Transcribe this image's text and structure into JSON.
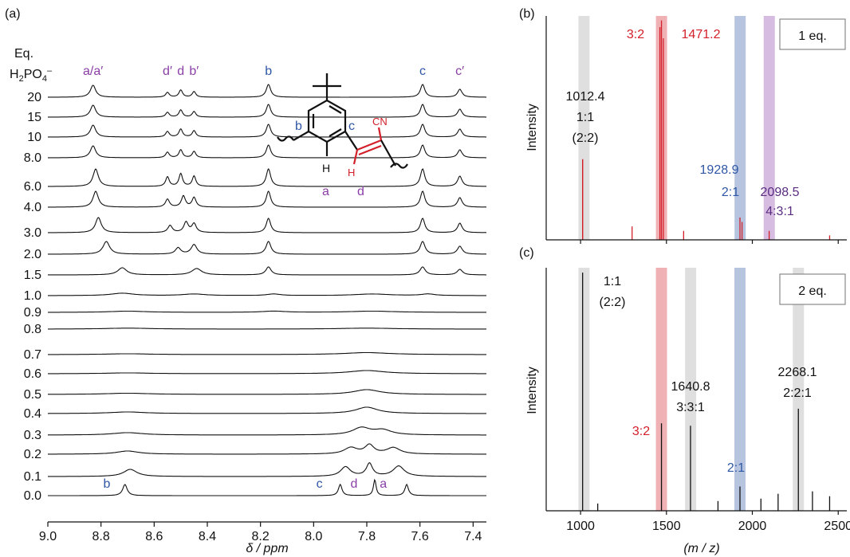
{
  "panels": {
    "a_label": "(a)",
    "b_label": "(b)",
    "c_label": "(c)"
  },
  "chart_data": [
    {
      "type": "line",
      "panel": "(a)",
      "xlabel": "δ / ppm",
      "xlim": [
        9.0,
        7.35
      ],
      "x_ticks": [
        "9.0",
        "8.8",
        "8.6",
        "8.4",
        "8.2",
        "8.0",
        "7.8",
        "7.6",
        "7.4"
      ],
      "x_tick_values": [
        9.0,
        8.8,
        8.6,
        8.4,
        8.2,
        8.0,
        7.8,
        7.6,
        7.4
      ],
      "row_header": [
        "Eq.",
        "H",
        "2",
        "PO",
        "4",
        "–"
      ],
      "equivalents": [
        "20",
        "15",
        "10",
        "8.0",
        "6.0",
        "4.0",
        "3.0",
        "2.0",
        "1.5",
        "1.0",
        "0.9",
        "0.8",
        "0.7",
        "0.6",
        "0.5",
        "0.4",
        "0.3",
        "0.2",
        "0.1",
        "0.0"
      ],
      "top_peak_labels": [
        {
          "text": "a/a′",
          "ppm": 8.83,
          "color": "purple"
        },
        {
          "text": "d′",
          "ppm": 8.55,
          "color": "purple"
        },
        {
          "text": "d",
          "ppm": 8.5,
          "color": "purple"
        },
        {
          "text": "b′",
          "ppm": 8.45,
          "color": "purple"
        },
        {
          "text": "b",
          "ppm": 8.17,
          "color": "blue"
        },
        {
          "text": "c",
          "ppm": 7.59,
          "color": "blue"
        },
        {
          "text": "c′",
          "ppm": 7.45,
          "color": "purple"
        }
      ],
      "bottom_peak_labels": [
        {
          "text": "b",
          "ppm": 8.73,
          "color": "blue"
        },
        {
          "text": "c",
          "ppm": 7.93,
          "color": "blue"
        },
        {
          "text": "d",
          "ppm": 7.8,
          "color": "purple"
        },
        {
          "text": "a",
          "ppm": 7.69,
          "color": "purple"
        }
      ],
      "structure_labels": {
        "b": "b",
        "c": "c",
        "cn": "CN",
        "h1": "H",
        "h2": "H",
        "a": "a",
        "d": "d"
      },
      "spectra": [
        {
          "eq": "20",
          "baseline_gap": [
            8.12,
            7.65
          ],
          "peaks": [
            [
              8.83,
              15,
              0.012
            ],
            [
              8.55,
              6,
              0.008
            ],
            [
              8.5,
              9,
              0.008
            ],
            [
              8.45,
              7,
              0.008
            ],
            [
              8.17,
              16,
              0.01
            ],
            [
              7.59,
              16,
              0.01
            ],
            [
              7.45,
              10,
              0.01
            ]
          ]
        },
        {
          "eq": "15",
          "peaks": [
            [
              8.83,
              15,
              0.012
            ],
            [
              8.55,
              6,
              0.008
            ],
            [
              8.5,
              9,
              0.008
            ],
            [
              8.45,
              7,
              0.008
            ],
            [
              8.17,
              16,
              0.01
            ],
            [
              7.59,
              16,
              0.01
            ],
            [
              7.45,
              10,
              0.01
            ]
          ]
        },
        {
          "eq": "10",
          "peaks": [
            [
              8.83,
              15,
              0.012
            ],
            [
              8.55,
              7,
              0.008
            ],
            [
              8.5,
              10,
              0.008
            ],
            [
              8.45,
              8,
              0.008
            ],
            [
              8.17,
              16,
              0.01
            ],
            [
              7.59,
              16,
              0.01
            ],
            [
              7.45,
              10,
              0.01
            ]
          ]
        },
        {
          "eq": "8.0",
          "peaks": [
            [
              8.83,
              15,
              0.012
            ],
            [
              8.55,
              7,
              0.008
            ],
            [
              8.5,
              10,
              0.008
            ],
            [
              8.45,
              8,
              0.008
            ],
            [
              8.17,
              16,
              0.01
            ],
            [
              7.59,
              16,
              0.01
            ],
            [
              7.45,
              10,
              0.01
            ]
          ]
        },
        {
          "eq": "6.0",
          "peaks": [
            [
              8.82,
              22,
              0.012
            ],
            [
              8.55,
              12,
              0.008
            ],
            [
              8.5,
              16,
              0.008
            ],
            [
              8.45,
              13,
              0.008
            ],
            [
              8.17,
              22,
              0.01
            ],
            [
              7.59,
              22,
              0.01
            ],
            [
              7.45,
              13,
              0.01
            ]
          ]
        },
        {
          "eq": "4.0",
          "peaks": [
            [
              8.82,
              20,
              0.012
            ],
            [
              8.55,
              10,
              0.009
            ],
            [
              8.49,
              14,
              0.009
            ],
            [
              8.45,
              12,
              0.009
            ],
            [
              8.17,
              20,
              0.01
            ],
            [
              7.59,
              20,
              0.01
            ],
            [
              7.45,
              12,
              0.01
            ]
          ]
        },
        {
          "eq": "3.0",
          "peaks": [
            [
              8.81,
              19,
              0.013
            ],
            [
              8.54,
              9,
              0.01
            ],
            [
              8.48,
              13,
              0.01
            ],
            [
              8.45,
              11,
              0.01
            ],
            [
              8.17,
              18,
              0.01
            ],
            [
              7.59,
              18,
              0.01
            ],
            [
              7.45,
              12,
              0.01
            ]
          ]
        },
        {
          "eq": "2.0",
          "peaks": [
            [
              8.78,
              16,
              0.015
            ],
            [
              8.51,
              8,
              0.012
            ],
            [
              8.45,
              12,
              0.013
            ],
            [
              8.17,
              16,
              0.011
            ],
            [
              7.59,
              16,
              0.011
            ],
            [
              7.45,
              10,
              0.011
            ]
          ]
        },
        {
          "eq": "1.5",
          "peaks": [
            [
              8.72,
              9,
              0.02
            ],
            [
              8.44,
              8,
              0.022
            ],
            [
              8.17,
              10,
              0.012
            ],
            [
              7.59,
              10,
              0.012
            ],
            [
              7.45,
              7,
              0.012
            ]
          ]
        },
        {
          "eq": "1.0",
          "peaks": [
            [
              8.72,
              3,
              0.05
            ],
            [
              8.45,
              2,
              0.05
            ],
            [
              8.15,
              2,
              0.03
            ],
            [
              7.78,
              2,
              0.08
            ],
            [
              7.57,
              2,
              0.03
            ]
          ]
        },
        {
          "eq": "0.9",
          "peaks": [
            [
              8.7,
              1.5,
              0.08
            ],
            [
              8.15,
              1.5,
              0.05
            ],
            [
              7.78,
              1.5,
              0.1
            ]
          ]
        },
        {
          "eq": "0.8",
          "peaks": [
            [
              8.7,
              1.2,
              0.1
            ],
            [
              7.8,
              1.2,
              0.12
            ]
          ]
        },
        {
          "eq": "0.7",
          "peaks": [
            [
              8.7,
              1,
              0.1
            ],
            [
              7.8,
              2.5,
              0.1
            ]
          ]
        },
        {
          "eq": "0.6",
          "peaks": [
            [
              8.7,
              1,
              0.1
            ],
            [
              7.8,
              4,
              0.08
            ]
          ]
        },
        {
          "eq": "0.5",
          "peaks": [
            [
              8.7,
              1.5,
              0.1
            ],
            [
              7.8,
              6,
              0.06
            ]
          ]
        },
        {
          "eq": "0.4",
          "peaks": [
            [
              8.7,
              2,
              0.08
            ],
            [
              7.8,
              8,
              0.05
            ]
          ]
        },
        {
          "eq": "0.3",
          "peaks": [
            [
              8.7,
              3,
              0.07
            ],
            [
              7.82,
              9,
              0.04
            ],
            [
              7.74,
              6,
              0.04
            ]
          ]
        },
        {
          "eq": "0.2",
          "peaks": [
            [
              8.7,
              4,
              0.05
            ],
            [
              7.86,
              8,
              0.03
            ],
            [
              7.79,
              11,
              0.02
            ],
            [
              7.7,
              8,
              0.03
            ]
          ]
        },
        {
          "eq": "0.1",
          "peaks": [
            [
              8.69,
              9,
              0.03
            ],
            [
              7.88,
              12,
              0.022
            ],
            [
              7.79,
              16,
              0.014
            ],
            [
              7.68,
              13,
              0.025
            ]
          ]
        },
        {
          "eq": "0.0",
          "peaks": [
            [
              8.71,
              14,
              0.01
            ],
            [
              7.9,
              14,
              0.008
            ],
            [
              7.77,
              20,
              0.006
            ],
            [
              7.65,
              14,
              0.008
            ]
          ]
        }
      ]
    },
    {
      "type": "bar",
      "panel": "(b)",
      "ylabel": "Intensity",
      "xlim": [
        800,
        2550
      ],
      "legend": "1 eq.",
      "x_tick_values": [
        1000,
        1500,
        2000,
        2500
      ],
      "highlights": [
        {
          "x": 1020,
          "color": "gray"
        },
        {
          "x": 1471.2,
          "color": "red"
        },
        {
          "x": 1928.9,
          "color": "blue"
        },
        {
          "x": 2098.5,
          "color": "purple"
        }
      ],
      "peak_labels": [
        {
          "lines": [
            "1012.4",
            "1:1",
            "(2:2)"
          ],
          "color": "black"
        },
        {
          "lines": [
            "3:2"
          ],
          "color": "red"
        },
        {
          "lines": [
            "1471.2"
          ],
          "color": "red"
        },
        {
          "lines": [
            "1928.9",
            "2:1"
          ],
          "color": "blue"
        },
        {
          "lines": [
            "2098.5",
            "4:3:1"
          ],
          "color": "dpurple"
        }
      ],
      "peaks": [
        {
          "x": 1012,
          "y": 0.36,
          "color": "red"
        },
        {
          "x": 1012,
          "y": 0.36,
          "color": "red"
        },
        {
          "x": 1300,
          "y": 0.06,
          "color": "red"
        },
        {
          "x": 1462,
          "y": 0.95,
          "color": "red"
        },
        {
          "x": 1471,
          "y": 0.98,
          "color": "red"
        },
        {
          "x": 1482,
          "y": 0.9,
          "color": "red"
        },
        {
          "x": 1600,
          "y": 0.04,
          "color": "red"
        },
        {
          "x": 1928,
          "y": 0.1,
          "color": "red"
        },
        {
          "x": 1940,
          "y": 0.08,
          "color": "red"
        },
        {
          "x": 2098,
          "y": 0.04,
          "color": "red"
        },
        {
          "x": 2450,
          "y": 0.02,
          "color": "red"
        }
      ]
    },
    {
      "type": "bar",
      "panel": "(c)",
      "ylabel": "Intensity",
      "xlabel": "(m / z)",
      "xlim": [
        800,
        2550
      ],
      "legend": "2 eq.",
      "x_ticks": [
        "1000",
        "1500",
        "2000",
        "2500"
      ],
      "x_tick_values": [
        1000,
        1500,
        2000,
        2500
      ],
      "highlights": [
        {
          "x": 1020,
          "color": "gray"
        },
        {
          "x": 1471,
          "color": "red"
        },
        {
          "x": 1640.8,
          "color": "gray"
        },
        {
          "x": 1928,
          "color": "blue"
        },
        {
          "x": 2268.1,
          "color": "gray"
        }
      ],
      "peak_labels": [
        {
          "lines": [
            "1:1",
            "(2:2)"
          ],
          "color": "black"
        },
        {
          "lines": [
            "3:2"
          ],
          "color": "red"
        },
        {
          "lines": [
            "1640.8",
            "3:3:1"
          ],
          "color": "black"
        },
        {
          "lines": [
            "2:1"
          ],
          "color": "blue"
        },
        {
          "lines": [
            "2268.1",
            "2:2:1"
          ],
          "color": "black"
        }
      ],
      "peaks": [
        {
          "x": 1012,
          "y": 0.98,
          "color": "black"
        },
        {
          "x": 1471,
          "y": 0.36,
          "color": "black"
        },
        {
          "x": 1640,
          "y": 0.35,
          "color": "black"
        },
        {
          "x": 1928,
          "y": 0.1,
          "color": "black"
        },
        {
          "x": 2268,
          "y": 0.42,
          "color": "black"
        },
        {
          "x": 1100,
          "y": 0.03,
          "color": "black"
        },
        {
          "x": 1800,
          "y": 0.04,
          "color": "black"
        },
        {
          "x": 2050,
          "y": 0.05,
          "color": "black"
        },
        {
          "x": 2150,
          "y": 0.07,
          "color": "black"
        },
        {
          "x": 2350,
          "y": 0.08,
          "color": "black"
        },
        {
          "x": 2450,
          "y": 0.06,
          "color": "black"
        }
      ]
    }
  ]
}
